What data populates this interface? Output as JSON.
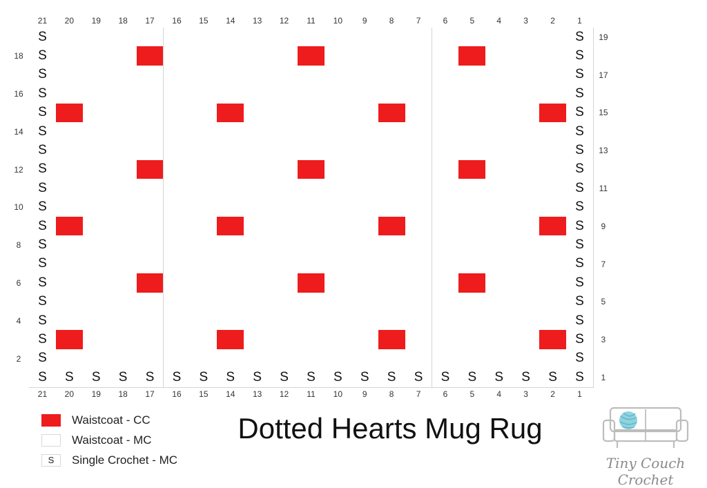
{
  "chart": {
    "columns": 21,
    "rows": 19,
    "stitch_symbol": "S",
    "cc_color": "#ee1c1c",
    "border_symbol_columns": [
      21,
      1
    ],
    "border_symbol_row": 1,
    "cc_cells": [
      {
        "row": 18,
        "cols": [
          17,
          11,
          5
        ]
      },
      {
        "row": 15,
        "cols": [
          20,
          14,
          8,
          2
        ]
      },
      {
        "row": 12,
        "cols": [
          17,
          11,
          5
        ]
      },
      {
        "row": 9,
        "cols": [
          20,
          14,
          8,
          2
        ]
      },
      {
        "row": 6,
        "cols": [
          17,
          11,
          5
        ]
      },
      {
        "row": 3,
        "cols": [
          20,
          14,
          8,
          2
        ]
      }
    ],
    "left_row_numbers": [
      18,
      16,
      14,
      12,
      10,
      8,
      6,
      4,
      2
    ],
    "right_row_numbers": [
      19,
      17,
      15,
      13,
      11,
      9,
      7,
      5,
      3,
      1
    ]
  },
  "legend": {
    "cc_label": "Waistcoat - CC",
    "mc_label": "Waistcoat - MC",
    "sc_symbol": "S",
    "sc_label": "Single Crochet - MC"
  },
  "title": "Dotted Hearts Mug Rug",
  "brand": {
    "name": "Tiny Couch Crochet",
    "logo_icon": "couch-with-yarn-ball-icon"
  }
}
